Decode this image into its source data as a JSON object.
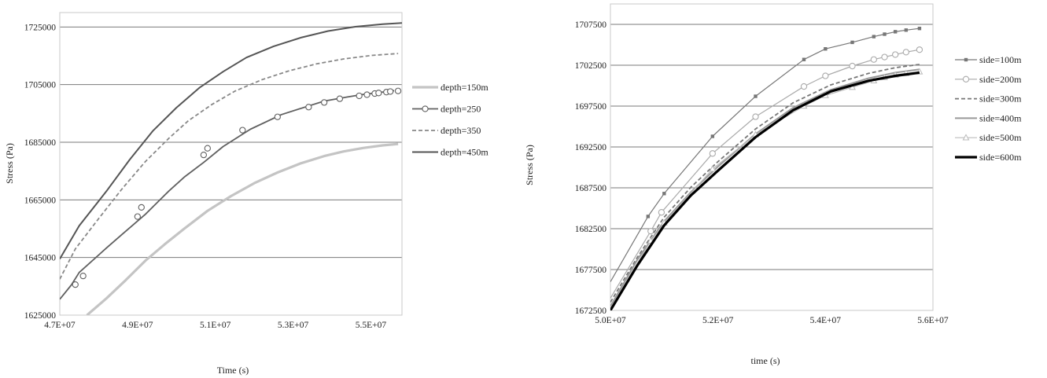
{
  "chart_data": [
    {
      "type": "line",
      "xlabel": "Time  (s)",
      "ylabel": "Stress (Pa)",
      "xlim": [
        47000000,
        55800000
      ],
      "ylim": [
        1625000,
        1730000
      ],
      "x_ticks": [
        "4.7E+07",
        "4.9E+07",
        "5.1E+07",
        "5.3E+07",
        "5.5E+07"
      ],
      "x_tick_values": [
        47000000,
        49000000,
        51000000,
        53000000,
        55000000
      ],
      "y_ticks": [
        "1625000",
        "1645000",
        "1665000",
        "1685000",
        "1705000",
        "1725000"
      ],
      "y_tick_values": [
        1625000,
        1645000,
        1665000,
        1685000,
        1705000,
        1725000
      ],
      "grid": "horizontal",
      "legend_position": "right",
      "series": [
        {
          "name": "depth=150m",
          "color": "#c4c4c4",
          "style": "thick",
          "x": [
            47700000,
            48200000,
            48700000,
            49200000,
            49700000,
            50200000,
            50800000,
            51400000,
            52000000,
            52600000,
            53200000,
            53800000,
            54300000,
            54800000,
            55300000,
            55700000
          ],
          "y": [
            1625000,
            1630800,
            1637200,
            1643900,
            1649600,
            1655000,
            1661200,
            1666300,
            1670800,
            1674500,
            1677700,
            1680200,
            1681800,
            1683000,
            1683900,
            1684400
          ]
        },
        {
          "name": "depth=250",
          "color": "#606060",
          "style": "markers",
          "x": [
            47000000,
            47300000,
            47500000,
            48200000,
            48600000,
            49200000,
            49500000,
            49800000,
            50200000,
            50700000,
            51200000,
            51900000,
            52700000,
            53400000,
            53800000,
            54400000,
            54800000,
            55200000,
            55400000,
            55600000
          ],
          "y": [
            1630500,
            1635500,
            1639800,
            1648300,
            1653000,
            1660000,
            1664000,
            1668000,
            1672900,
            1678000,
            1683500,
            1689500,
            1694600,
            1697600,
            1699300,
            1700700,
            1701600,
            1702200,
            1702600,
            1702900
          ],
          "markers_x": [
            47400000,
            47600000,
            49000000,
            49100000,
            50700000,
            50800000,
            51700000,
            52600000,
            53400000,
            53800000,
            54200000,
            54700000,
            54900000,
            55100000,
            55200000,
            55400000,
            55500000,
            55700000
          ],
          "markers_y": [
            1635600,
            1638600,
            1659200,
            1662400,
            1680600,
            1682900,
            1689200,
            1693800,
            1697200,
            1698800,
            1700100,
            1701100,
            1701500,
            1701900,
            1702100,
            1702400,
            1702600,
            1702800
          ]
        },
        {
          "name": "depth=350",
          "color": "#888888",
          "style": "dashed",
          "x": [
            47000000,
            47400000,
            48000000,
            48600000,
            49200000,
            49800000,
            50300000,
            50900000,
            51500000,
            52200000,
            52900000,
            53600000,
            54300000,
            55000000,
            55700000
          ],
          "y": [
            1637500,
            1648000,
            1658500,
            1668800,
            1678300,
            1686300,
            1692400,
            1698000,
            1702700,
            1706700,
            1709800,
            1712200,
            1713900,
            1715100,
            1715800
          ]
        },
        {
          "name": "depth=450m",
          "color": "#555555",
          "style": "solid",
          "x": [
            47000000,
            47500000,
            48200000,
            48800000,
            49400000,
            50000000,
            50600000,
            51200000,
            51800000,
            52500000,
            53200000,
            53900000,
            54600000,
            55300000,
            55800000
          ],
          "y": [
            1644500,
            1656000,
            1668000,
            1679000,
            1689000,
            1697000,
            1704000,
            1709500,
            1714400,
            1718300,
            1721300,
            1723600,
            1725100,
            1726000,
            1726400
          ]
        }
      ]
    },
    {
      "type": "line",
      "xlabel": "time (s)",
      "ylabel": "Stress  (Pa)",
      "xlim": [
        50000000,
        56000000
      ],
      "ylim": [
        1672500,
        1710000
      ],
      "x_ticks": [
        "5.0E+07",
        "5.2E+07",
        "5.4E+07",
        "5.6E+07"
      ],
      "x_tick_values": [
        50000000,
        52000000,
        54000000,
        56000000
      ],
      "y_ticks": [
        "1672500",
        "1677500",
        "1682500",
        "1687500",
        "1692500",
        "1697500",
        "1702500",
        "1707500"
      ],
      "y_tick_values": [
        1672500,
        1677500,
        1682500,
        1687500,
        1692500,
        1697500,
        1702500,
        1707500
      ],
      "grid": "horizontal",
      "legend_position": "right",
      "series": [
        {
          "name": "side=100m",
          "color": "#777777",
          "marker": "square-filled",
          "style": "solid-thin",
          "x": [
            50000000,
            50700000,
            51000000,
            51900000,
            52700000,
            53600000,
            54000000,
            54500000,
            54900000,
            55100000,
            55300000,
            55500000,
            55750000
          ],
          "y": [
            1676000,
            1684000,
            1686800,
            1693800,
            1698700,
            1703200,
            1704500,
            1705300,
            1706000,
            1706300,
            1706600,
            1706800,
            1707000
          ]
        },
        {
          "name": "side=200m",
          "color": "#aaaaaa",
          "marker": "circle-open",
          "style": "solid-thin",
          "x": [
            50000000,
            50750000,
            50950000,
            51900000,
            52700000,
            53600000,
            54000000,
            54500000,
            54900000,
            55100000,
            55300000,
            55500000,
            55750000
          ],
          "y": [
            1674000,
            1682200,
            1684500,
            1691700,
            1696200,
            1699900,
            1701200,
            1702400,
            1703200,
            1703500,
            1703800,
            1704100,
            1704400
          ]
        },
        {
          "name": "side=300m",
          "color": "#777777",
          "style": "dashed",
          "x": [
            50000000,
            50500000,
            51000000,
            51500000,
            52000000,
            52700000,
            53400000,
            54100000,
            54800000,
            55300000,
            55750000
          ],
          "y": [
            1673500,
            1679000,
            1683900,
            1687600,
            1690700,
            1694700,
            1697900,
            1700100,
            1701500,
            1702200,
            1702600
          ]
        },
        {
          "name": "side=400m",
          "color": "#999999",
          "style": "solid",
          "x": [
            50000000,
            50500000,
            51000000,
            51500000,
            52000000,
            52700000,
            53400000,
            54100000,
            54800000,
            55300000,
            55750000
          ],
          "y": [
            1673000,
            1678700,
            1683400,
            1687000,
            1690100,
            1694100,
            1697300,
            1699500,
            1700900,
            1701600,
            1702000
          ]
        },
        {
          "name": "side=500m",
          "color": "#bbbbbb",
          "marker": "triangle-open",
          "style": "solid-thin",
          "x": [
            50000000,
            50750000,
            51000000,
            51900000,
            52700000,
            53600000,
            54000000,
            54500000,
            54900000,
            55100000,
            55300000,
            55500000,
            55750000
          ],
          "y": [
            1672800,
            1681000,
            1683200,
            1689800,
            1694000,
            1697500,
            1698800,
            1699800,
            1700600,
            1701000,
            1701300,
            1701500,
            1701700
          ]
        },
        {
          "name": "side=600m",
          "color": "#000000",
          "style": "thick",
          "x": [
            50000000,
            50500000,
            51000000,
            51500000,
            52000000,
            52700000,
            53400000,
            54100000,
            54800000,
            55300000,
            55750000
          ],
          "y": [
            1672500,
            1678000,
            1682900,
            1686600,
            1689600,
            1693700,
            1697000,
            1699300,
            1700600,
            1701200,
            1701600
          ]
        }
      ]
    }
  ]
}
